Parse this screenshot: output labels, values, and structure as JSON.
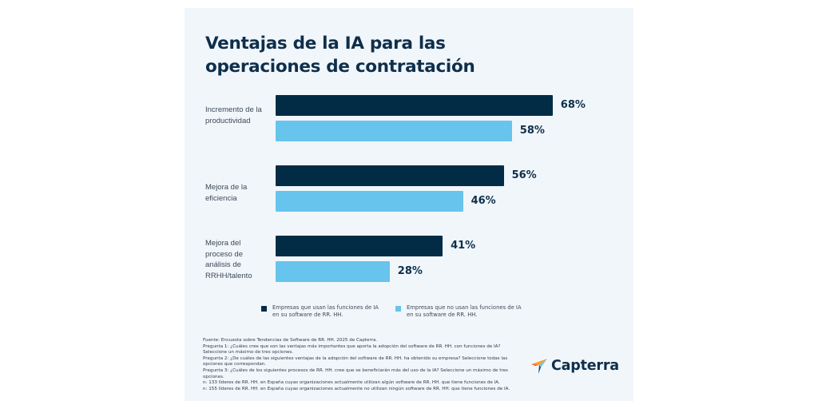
{
  "chart_data": {
    "type": "bar",
    "orientation": "horizontal",
    "title": "Ventajas de la IA para las operaciones de contratación",
    "categories": [
      "Incremento de la productividad",
      "Mejora de la eficiencia",
      "Mejora del proceso de análisis de RRHH/talento"
    ],
    "category_label_lines": [
      [
        "Incremento de la",
        "productividad"
      ],
      [
        "Mejora de la",
        "eficiencia"
      ],
      [
        "Mejora del",
        "proceso de",
        "análisis de",
        "RRHH/talento"
      ]
    ],
    "series": [
      {
        "name": "Empresas que usan las funciones de IA en su software de RR. HH.",
        "color": "#022c46",
        "values": [
          68,
          56,
          41
        ],
        "labels": [
          "68%",
          "56%",
          "41%"
        ]
      },
      {
        "name": "Empresas que no usan las funciones de IA en su software de RR. HH.",
        "color": "#67c4ec",
        "values": [
          58,
          46,
          28
        ],
        "labels": [
          "58%",
          "46%",
          "28%"
        ]
      }
    ],
    "xlabel": "",
    "ylabel": "",
    "xlim": [
      0,
      100
    ],
    "grid": false,
    "legend_position": "bottom"
  },
  "title_lines": [
    "Ventajas de la IA para las",
    "operaciones de contratación"
  ],
  "legend": [
    {
      "lines": [
        "Empresas que usan las funciones de IA",
        "en su software de RR. HH."
      ],
      "color": "#022c46"
    },
    {
      "lines": [
        "Empresas que no usan las funciones de IA",
        "en su software de RR. HH."
      ],
      "color": "#67c4ec"
    }
  ],
  "footnote": [
    "Fuente: Encuesta sobre Tendencias de Software de RR. HH. 2025 de Capterra.",
    "Pregunta 1: ¿Cuáles cree que son las ventajas más importantes que aporta la adopción del software de RR. HH. con funciones de IA? Seleccione un máximo de tres opciones.",
    "Pregunta 2: ¿De cuáles de las siguientes ventajas de la adopción del software de RR. HH. ha obtenido su empresa? Seleccione todas las opciones que correspondan.",
    "Pregunta 3: ¿Cuáles de los siguientes procesos de RR. HH. cree que se beneficiarán más del uso de la IA? Seleccione un máximo de tres opciones.",
    "n: 133 líderes de RR. HH. en España cuyas organizaciones actualmente utilizan algún software de RR. HH. que tiene funciones de IA.",
    "n: 155 líderes de RR. HH. en España cuyas organizaciones actualmente no utilizan ningún software de RR. HH. que tiene funciones de IA."
  ],
  "brand": {
    "name": "Capterra",
    "logo_icon": "capterra-arrow-icon",
    "colors": {
      "orange": "#ff9d28",
      "blue": "#68c5ed",
      "navy": "#044d80",
      "red": "#ff3d2e"
    }
  }
}
